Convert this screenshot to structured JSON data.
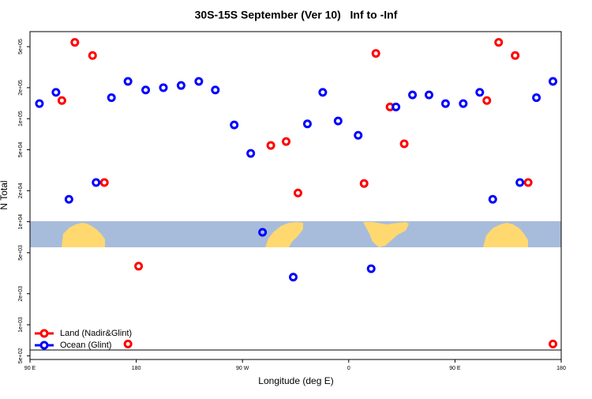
{
  "chart_data": {
    "type": "scatter",
    "title": "30S-15S September (Ver 10)   Inf to -Inf",
    "x_label": "Longitude (deg E)",
    "y_label": "N Total",
    "log_y": true,
    "legend": "bottomleft",
    "xlim": [
      90,
      540
    ],
    "xticks": [
      {
        "value": 90,
        "label": "90 E"
      },
      {
        "value": 180,
        "label": "180"
      },
      {
        "value": 270,
        "label": "90 W"
      },
      {
        "value": 360,
        "label": "0"
      },
      {
        "value": 450,
        "label": "90 E"
      },
      {
        "value": 540,
        "label": "180"
      }
    ],
    "ylim": [
      460,
      700000
    ],
    "yticks": [
      {
        "value": 500,
        "label": "5e+02"
      },
      {
        "value": 1000,
        "label": "1e+03"
      },
      {
        "value": 2000,
        "label": "2e+03"
      },
      {
        "value": 5000,
        "label": "5e+03"
      },
      {
        "value": 10000,
        "label": "1e+04"
      },
      {
        "value": 20000,
        "label": "2e+04"
      },
      {
        "value": 50000,
        "label": "5e+04"
      },
      {
        "value": 100000,
        "label": "1e+05"
      },
      {
        "value": 200000,
        "label": "2e+05"
      },
      {
        "value": 500000,
        "label": "5e+05"
      }
    ],
    "series": [
      {
        "name": "Land (Nadir&Glint)",
        "color": "#ff0000",
        "x": [
          117,
          128,
          143,
          153,
          182,
          173,
          294,
          307,
          317,
          373,
          383,
          395,
          407,
          477,
          487,
          501,
          512,
          533
        ],
        "values": [
          150000,
          550000,
          410000,
          24000,
          3700,
          650,
          55000,
          60000,
          19000,
          23500,
          430000,
          130000,
          57000,
          150000,
          550000,
          410000,
          24000,
          650
        ]
      },
      {
        "name": "Ocean (Glint)",
        "color": "#0000ff",
        "x": [
          98,
          112,
          123,
          146,
          159,
          173,
          188,
          203,
          218,
          233,
          247,
          263,
          277,
          287,
          313,
          325,
          338,
          351,
          368,
          379,
          400,
          414,
          428,
          442,
          457,
          471,
          482,
          505,
          519,
          533
        ],
        "values": [
          140000,
          180000,
          16500,
          24000,
          160000,
          230000,
          190000,
          200000,
          210000,
          230000,
          190000,
          87000,
          46000,
          7900,
          2900,
          89000,
          180000,
          95000,
          69000,
          3500,
          130000,
          170000,
          170000,
          140000,
          140000,
          180000,
          16500,
          24000,
          160000,
          230000
        ]
      }
    ]
  }
}
